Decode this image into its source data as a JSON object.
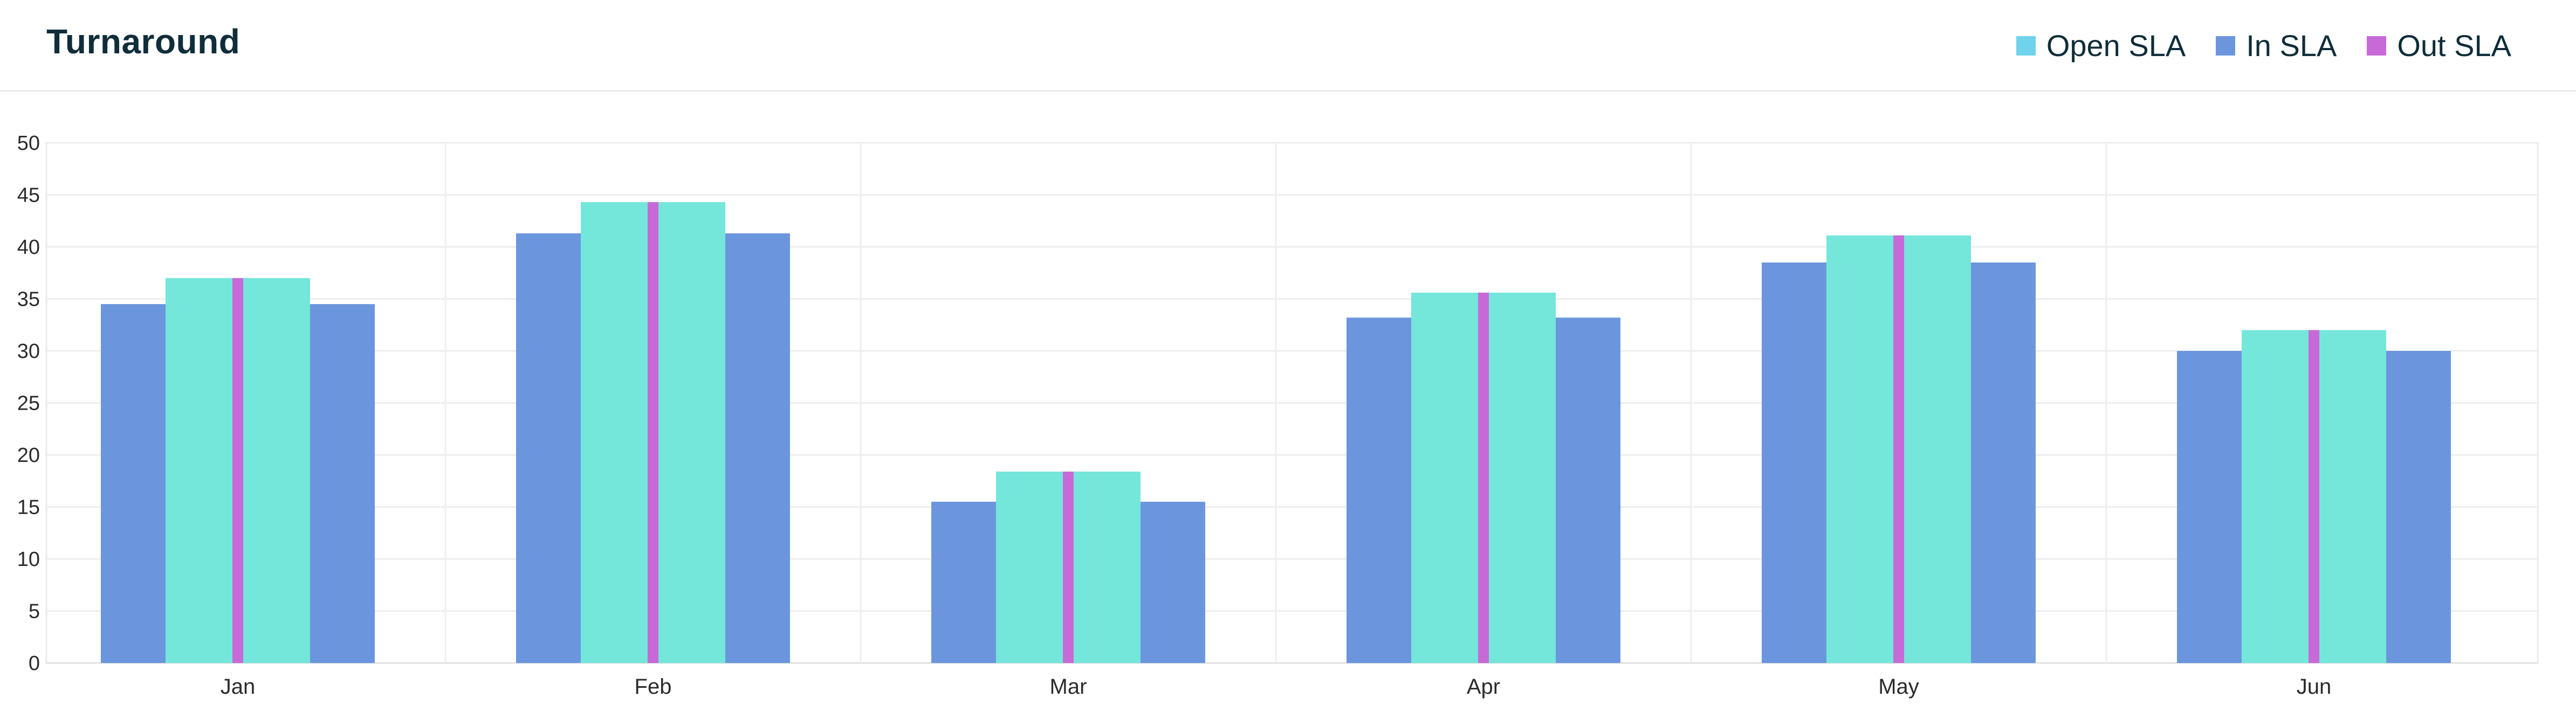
{
  "header": {
    "title": "Turnaround"
  },
  "legend": {
    "items": [
      {
        "label": "Open SLA",
        "color": "#6fd3ec"
      },
      {
        "label": "In SLA",
        "color": "#6b96dd"
      },
      {
        "label": "Out SLA",
        "color": "#c76ad8"
      }
    ]
  },
  "chart_data": {
    "type": "bar",
    "title": "Turnaround",
    "categories": [
      "Jan",
      "Feb",
      "Mar",
      "Apr",
      "May",
      "Jun"
    ],
    "series": [
      {
        "name": "In SLA",
        "color": "#6b96dd",
        "values": [
          34.5,
          41.3,
          15.5,
          33.2,
          38.5,
          30.0
        ]
      },
      {
        "name": "Open SLA",
        "color": "#74e6da",
        "values": [
          37.0,
          44.3,
          18.4,
          35.6,
          41.1,
          32.0
        ]
      },
      {
        "name": "Out SLA",
        "color": "#c76ad8",
        "values": [
          37.0,
          44.3,
          18.4,
          35.6,
          41.1,
          32.0
        ]
      }
    ],
    "ylim": [
      0,
      50
    ],
    "yticks": [
      0,
      5,
      10,
      15,
      20,
      25,
      30,
      35,
      40,
      45,
      50
    ],
    "grid": true,
    "legend_position": "top-right",
    "xlabel": "",
    "ylabel": ""
  }
}
